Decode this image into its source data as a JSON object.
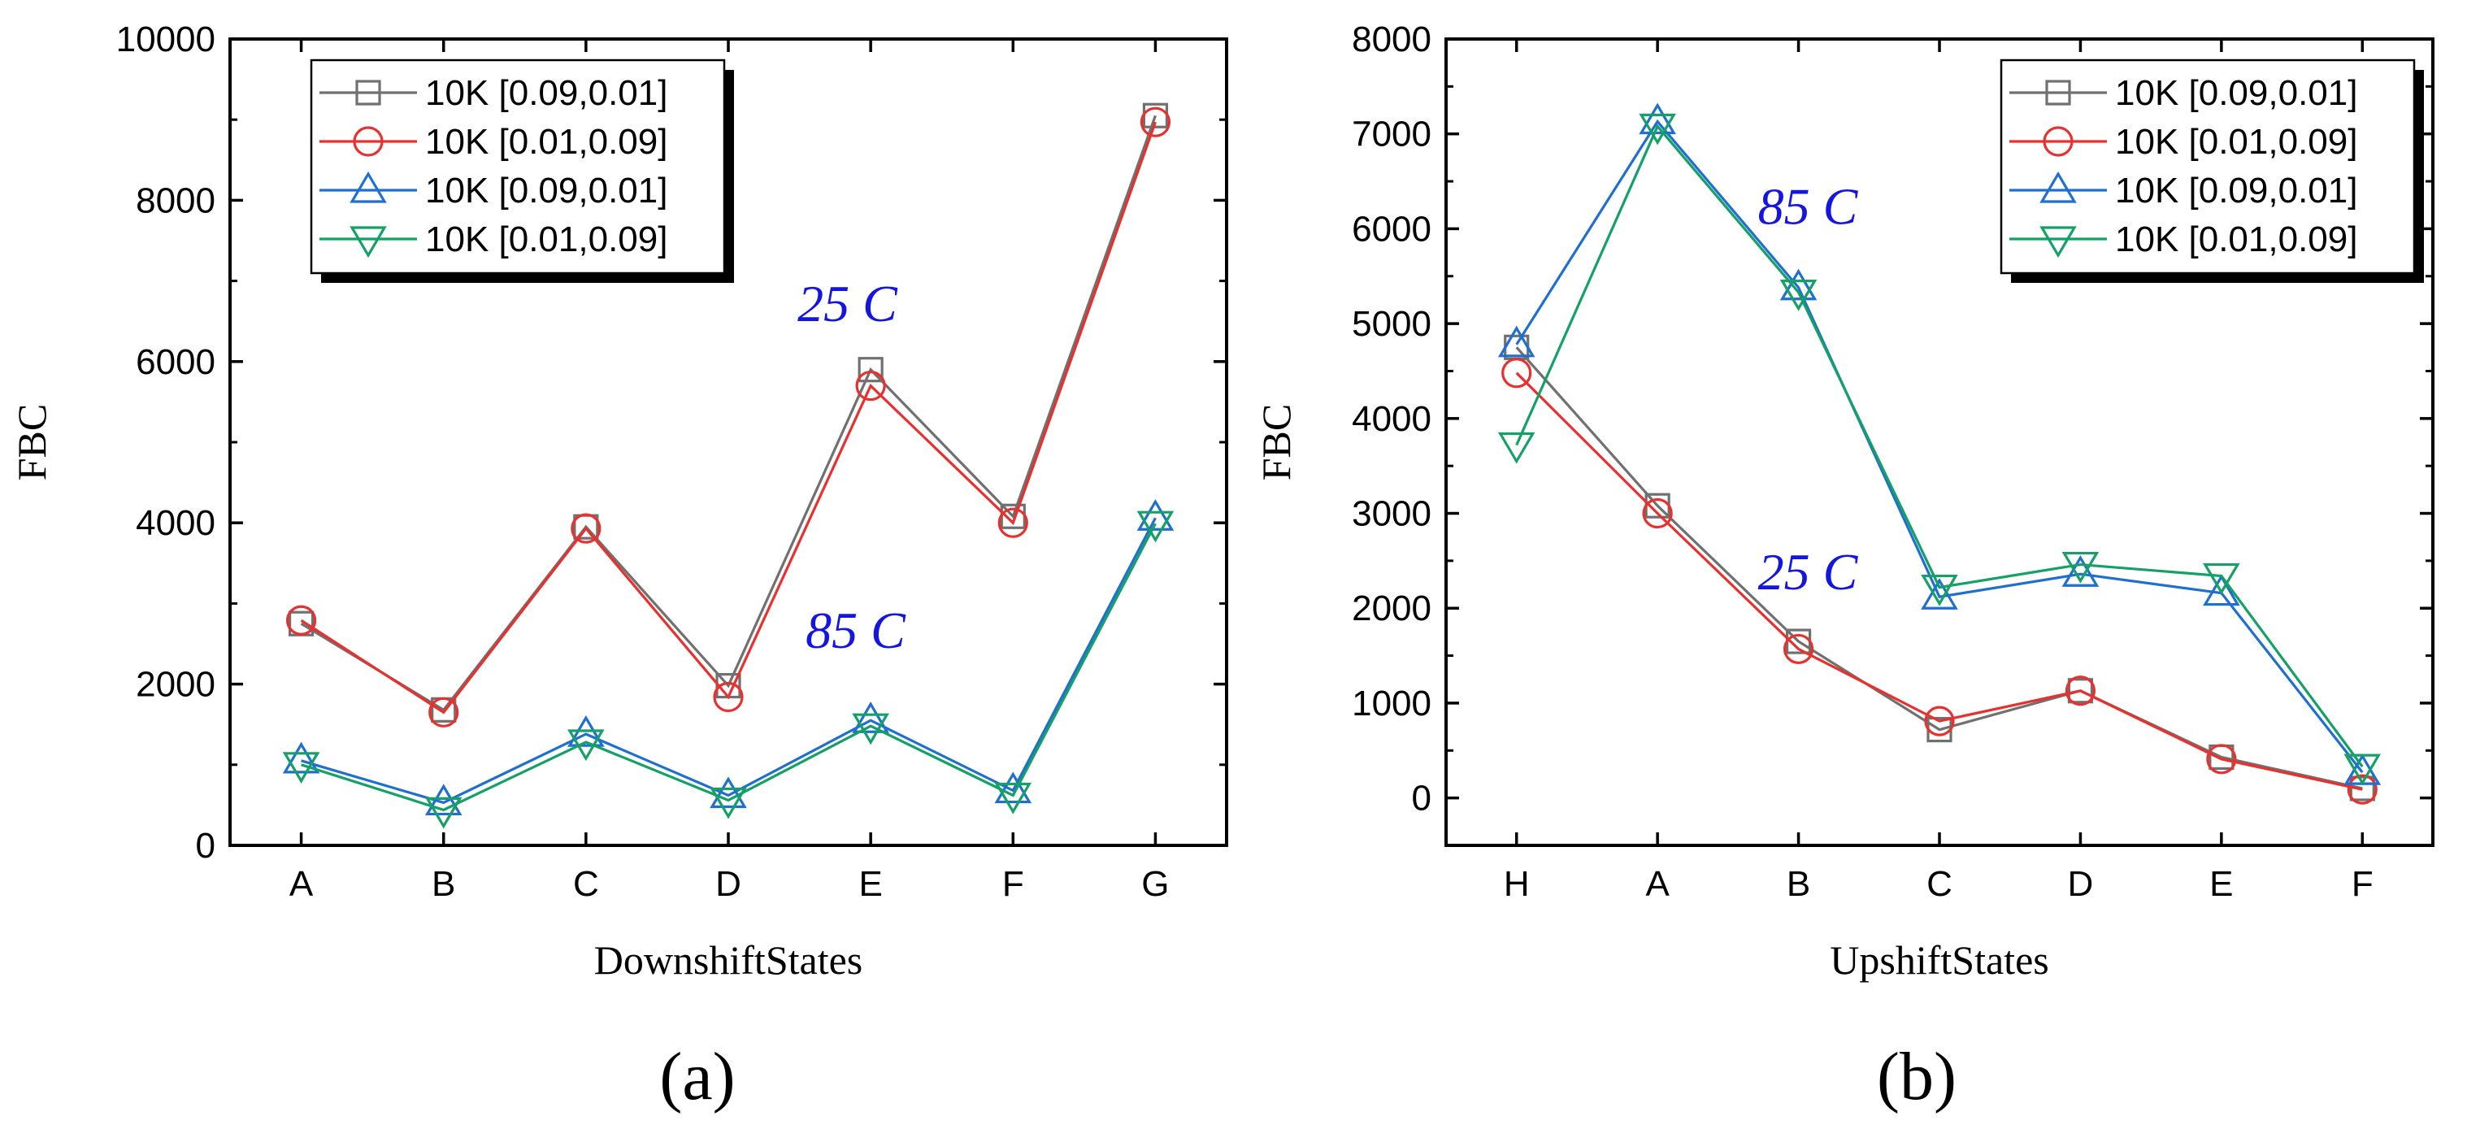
{
  "chart_data": [
    {
      "type": "line",
      "panel_label": "(a)",
      "xlabel": "DownshiftStates",
      "ylabel": "FBC",
      "categories": [
        "A",
        "B",
        "C",
        "D",
        "E",
        "F",
        "G"
      ],
      "ylim": [
        0,
        10000
      ],
      "yticks": [
        "0",
        "2000",
        "4000",
        "6000",
        "8000",
        "10000"
      ],
      "legend_position": "top-left",
      "series": [
        {
          "name": "10K [0.09,0.01]",
          "marker": "square",
          "color": "#707070",
          "values": [
            2750,
            1680,
            3950,
            1980,
            5900,
            4080,
            9050
          ]
        },
        {
          "name": "10K [0.01,0.09]",
          "marker": "circle",
          "color": "#e8302e",
          "values": [
            2790,
            1650,
            3930,
            1840,
            5700,
            4000,
            8970
          ]
        },
        {
          "name": "10K [0.09,0.01]",
          "marker": "triangle-up",
          "color": "#1f6fd1",
          "values": [
            1050,
            530,
            1380,
            620,
            1550,
            680,
            4060
          ]
        },
        {
          "name": "10K [0.01,0.09]",
          "marker": "triangle-down",
          "color": "#14a066",
          "values": [
            1000,
            440,
            1280,
            560,
            1480,
            620,
            3990
          ]
        }
      ],
      "annotations": [
        {
          "text": "25 C",
          "color": "#1515e0",
          "x": "E",
          "y": 6500
        },
        {
          "text": "85 C",
          "color": "#1515e0",
          "x": "E",
          "y": 2450
        }
      ]
    },
    {
      "type": "line",
      "panel_label": "(b)",
      "xlabel": "UpshiftStates",
      "ylabel": "FBC",
      "categories": [
        "H",
        "A",
        "B",
        "C",
        "D",
        "E",
        "F"
      ],
      "ylim": [
        -500,
        8000
      ],
      "yticks": [
        "0",
        "1000",
        "2000",
        "3000",
        "4000",
        "5000",
        "6000",
        "7000",
        "8000"
      ],
      "legend_position": "top-right",
      "series": [
        {
          "name": "10K [0.09,0.01]",
          "marker": "square",
          "color": "#707070",
          "values": [
            4750,
            3080,
            1650,
            720,
            1130,
            430,
            100
          ]
        },
        {
          "name": "10K [0.01,0.09]",
          "marker": "circle",
          "color": "#e8302e",
          "values": [
            4480,
            3000,
            1570,
            810,
            1130,
            410,
            90
          ]
        },
        {
          "name": "10K [0.09,0.01]",
          "marker": "triangle-up",
          "color": "#1f6fd1",
          "values": [
            4780,
            7130,
            5380,
            2120,
            2360,
            2160,
            270
          ]
        },
        {
          "name": "10K [0.01,0.09]",
          "marker": "triangle-down",
          "color": "#14a066",
          "values": [
            3720,
            7080,
            5330,
            2220,
            2460,
            2340,
            330
          ]
        }
      ],
      "annotations": [
        {
          "text": "85 C",
          "color": "#1515e0",
          "x": "B",
          "y": 6050
        },
        {
          "text": "25 C",
          "color": "#1515e0",
          "x": "B",
          "y": 2200
        }
      ]
    }
  ]
}
